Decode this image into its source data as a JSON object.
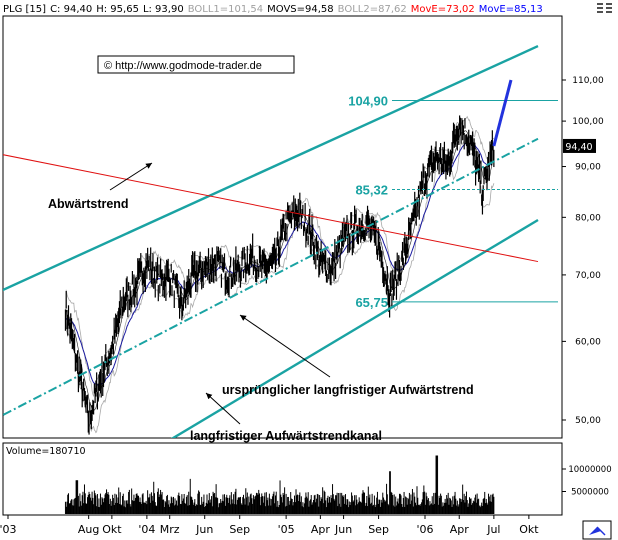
{
  "header": [
    {
      "text": "PLG [15]",
      "color": "#000000"
    },
    {
      "text": "C: 94,40",
      "color": "#000000"
    },
    {
      "text": "H: 95,65",
      "color": "#000000"
    },
    {
      "text": "L: 93,90",
      "color": "#000000"
    },
    {
      "text": "BOLL1=101,54",
      "color": "#a0a0a0"
    },
    {
      "text": "MOVS=94,58",
      "color": "#000000"
    },
    {
      "text": "BOLL2=87,62",
      "color": "#a0a0a0"
    },
    {
      "text": "MovE=73,02",
      "color": "#ff0000"
    },
    {
      "text": "MovE=85,13",
      "color": "#0000ff"
    }
  ],
  "copyright": "© http://www.godmode-trader.de",
  "annotations": {
    "abwaertstrend": "Abwärtstrend",
    "urspruenglich": "ursprünglicher langfristiger Aufwärtstrend",
    "kanal": "langfristiger Aufwärtstrendkanal"
  },
  "colors": {
    "channel": "#1aa3a3",
    "downtrend": "#e01010",
    "movs": "#1a1aa0",
    "bollinger": "#a8a8a8",
    "projection": "#2233dd",
    "price": "#000000",
    "volume": "#000000"
  },
  "chart_data": {
    "type": "line",
    "x_ticks": [
      "'03",
      "Aug",
      "Okt",
      "'04",
      "Mrz",
      "Jun",
      "Sep",
      "'05",
      "Apr",
      "Jun",
      "Sep",
      "'06",
      "Apr",
      "Jul",
      "Okt"
    ],
    "y_ticks": [
      50,
      60,
      70,
      80,
      90,
      100,
      110
    ],
    "y_tick_labels": [
      "50,00",
      "60,00",
      "70,00",
      "80,00",
      "90,00",
      "100,00",
      "110,00"
    ],
    "current_price": 94.4,
    "current_price_label": "94,40",
    "levels": [
      {
        "value": 104.9,
        "label": "104,90"
      },
      {
        "value": 85.32,
        "label": "85,32"
      },
      {
        "value": 65.75,
        "label": "65,75"
      }
    ],
    "price_path": [
      [
        "2003-06-01",
        65
      ],
      [
        "2003-07-01",
        57
      ],
      [
        "2003-08-01",
        50
      ],
      [
        "2003-09-01",
        55
      ],
      [
        "2003-10-01",
        59
      ],
      [
        "2003-11-01",
        66
      ],
      [
        "2003-12-01",
        68
      ],
      [
        "2004-01-01",
        72
      ],
      [
        "2004-02-01",
        69
      ],
      [
        "2004-03-01",
        70
      ],
      [
        "2004-04-01",
        65
      ],
      [
        "2004-05-01",
        70
      ],
      [
        "2004-06-01",
        71
      ],
      [
        "2004-07-01",
        72
      ],
      [
        "2004-08-01",
        70
      ],
      [
        "2004-09-01",
        71
      ],
      [
        "2004-10-01",
        73
      ],
      [
        "2004-11-01",
        71
      ],
      [
        "2004-12-01",
        72
      ],
      [
        "2005-01-01",
        79
      ],
      [
        "2005-02-01",
        81
      ],
      [
        "2005-03-01",
        78
      ],
      [
        "2005-04-01",
        72
      ],
      [
        "2005-05-01",
        71
      ],
      [
        "2005-06-01",
        76
      ],
      [
        "2005-07-01",
        78
      ],
      [
        "2005-08-01",
        79
      ],
      [
        "2005-09-01",
        75
      ],
      [
        "2005-10-01",
        67
      ],
      [
        "2005-11-01",
        72
      ],
      [
        "2005-12-01",
        79
      ],
      [
        "2006-01-01",
        88
      ],
      [
        "2006-02-01",
        92
      ],
      [
        "2006-03-01",
        90
      ],
      [
        "2006-04-01",
        100
      ],
      [
        "2006-05-01",
        95
      ],
      [
        "2006-06-01",
        85
      ],
      [
        "2006-07-01",
        94.4
      ]
    ],
    "projection": [
      [
        "2006-07-01",
        94.4
      ],
      [
        "2006-08-15",
        110
      ]
    ],
    "volume": {
      "label": "Volume=180710",
      "y_tick_labels": [
        "10000000",
        "5000000"
      ],
      "y_ticks": [
        10000000,
        5000000
      ],
      "highlights": [
        [
          "2003-07-01",
          7500000
        ],
        [
          "2005-10-01",
          9500000
        ],
        [
          "2006-02-01",
          13000000
        ]
      ]
    }
  }
}
